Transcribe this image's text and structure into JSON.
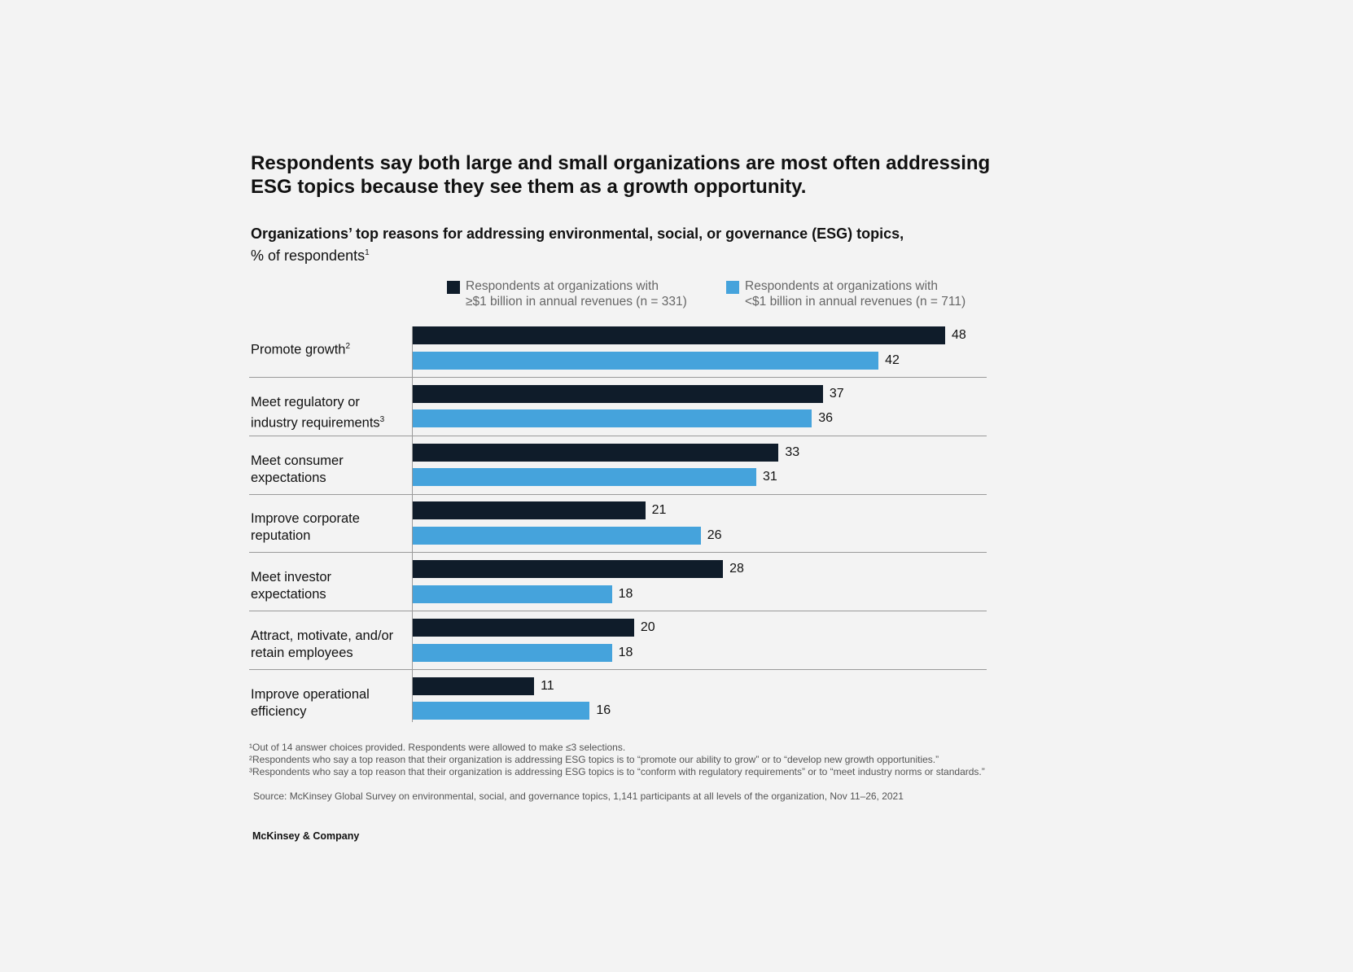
{
  "title": "Respondents say both large and small organizations are most often addressing ESG topics because they see them as a growth opportunity.",
  "subtitle_bold": "Organizations’ top reasons for addressing environmental, social, or governance (ESG) topics,",
  "subtitle_rest": "% of respondents",
  "subtitle_sup": "1",
  "chart_data": {
    "type": "bar",
    "orientation": "horizontal",
    "categories": [
      "Promote growth",
      "Meet regulatory or industry requirements",
      "Meet consumer expectations",
      "Improve corporate reputation",
      "Meet investor expectations",
      "Attract, motivate, and/or retain employees",
      "Improve operational efficiency"
    ],
    "category_lines": [
      [
        "Promote growth"
      ],
      [
        "Meet regulatory or",
        "industry requirements"
      ],
      [
        "Meet consumer",
        "expectations"
      ],
      [
        "Improve corporate",
        "reputation"
      ],
      [
        "Meet investor",
        "expectations"
      ],
      [
        "Attract, motivate, and/or",
        "retain employees"
      ],
      [
        "Improve operational",
        "efficiency"
      ]
    ],
    "category_sups": [
      "2",
      "3",
      "",
      "",
      "",
      "",
      ""
    ],
    "series": [
      {
        "name": "Respondents at organizations with ≥$1 billion in annual revenues (n = 331)",
        "legend_lines": [
          "Respondents at organizations with",
          "≥$1 billion in annual revenues (n = 331)"
        ],
        "color": "#0f1c2a",
        "values": [
          48,
          37,
          33,
          21,
          28,
          20,
          11
        ]
      },
      {
        "name": "Respondents at organizations with <$1 billion in annual revenues (n = 711)",
        "legend_lines": [
          "Respondents at organizations with",
          "<$1 billion in annual revenues (n = 711)"
        ],
        "color": "#45a3dc",
        "values": [
          42,
          36,
          31,
          26,
          18,
          18,
          16
        ]
      }
    ],
    "xlim": [
      0,
      48
    ],
    "legend": "top",
    "grid": false
  },
  "footnotes": [
    "¹Out of 14 answer choices provided. Respondents were allowed to make ≤3 selections.",
    "²Respondents who say a top reason that their organization is addressing ESG topics is to “promote our ability to grow” or to “develop new growth opportunities.”",
    "³Respondents who say a top reason that their organization is addressing ESG topics is to “conform with regulatory requirements” or to “meet industry norms or standards.”",
    "Source: McKinsey Global Survey on environmental, social, and governance topics, 1,141 participants at all levels of the organization, Nov 11–26, 2021"
  ],
  "brand": "McKinsey & Company"
}
